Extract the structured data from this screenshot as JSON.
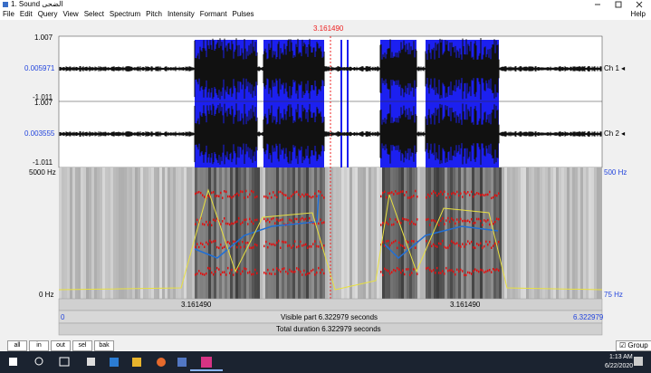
{
  "window": {
    "title": "1. Sound الضحى",
    "menu": [
      "File",
      "Edit",
      "Query",
      "View",
      "Select",
      "Spectrum",
      "Pitch",
      "Intensity",
      "Formant",
      "Pulses"
    ],
    "help": "Help"
  },
  "editor": {
    "cursor_time": "3.161490",
    "channels": [
      {
        "max": "1.007",
        "mid": "0.005971",
        "min": "-1.011",
        "label": "Ch 1 ◂"
      },
      {
        "max": "1.007",
        "mid": "0.003555",
        "min": "-1.011",
        "label": "Ch 2 ◂"
      }
    ],
    "spectrogram": {
      "top": "5000 Hz",
      "bottom": "0 Hz",
      "pitch_top": "500 Hz",
      "pitch_bottom": "75 Hz"
    },
    "time_bar": {
      "left": "3.161490",
      "right": "3.161490",
      "start": "0",
      "visible": "Visible part 6.322979 seconds",
      "end": "6.322979",
      "total": "Total duration 6.322979 seconds"
    }
  },
  "buttons": [
    "all",
    "in",
    "out",
    "sel",
    "bak"
  ],
  "group": "Group",
  "taskbar": {
    "time": "1:13 AM",
    "date": "6/22/2020"
  }
}
